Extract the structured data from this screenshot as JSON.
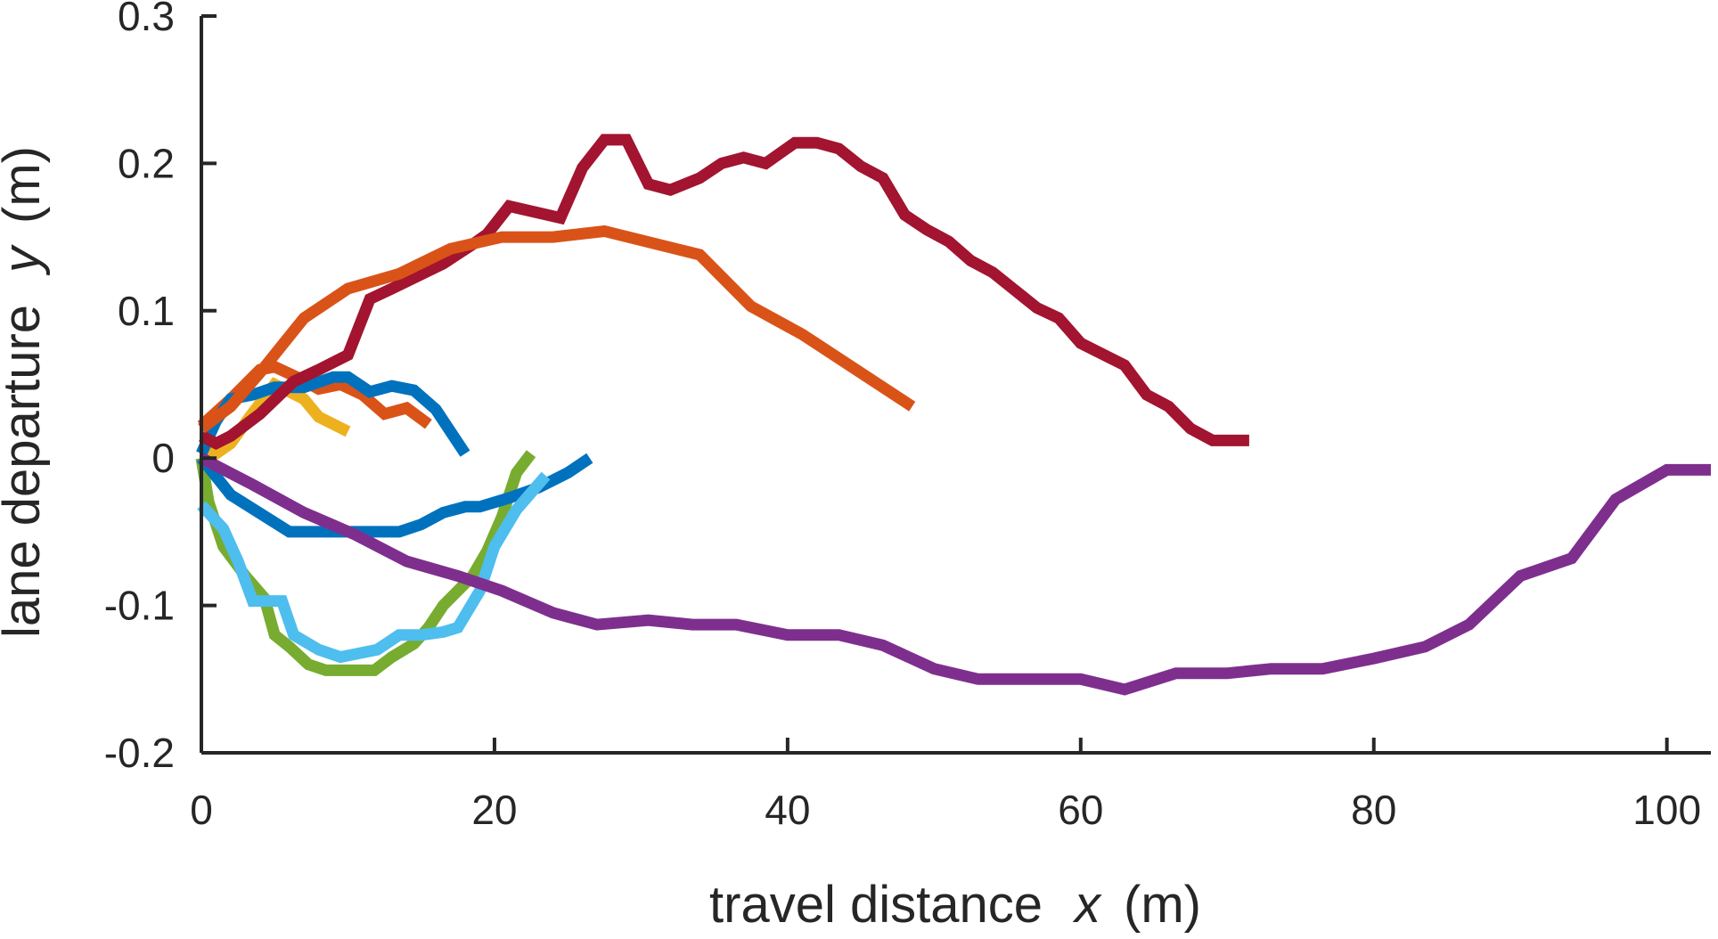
{
  "chart_data": {
    "type": "line",
    "title": "",
    "xlabel": {
      "prefix": "travel distance",
      "variable": "x",
      "unit": "(m)"
    },
    "ylabel": {
      "prefix": "lane departure",
      "variable": "y",
      "unit": "(m)"
    },
    "xlim": [
      0,
      103
    ],
    "ylim": [
      -0.2,
      0.3
    ],
    "xticks": [
      0,
      20,
      40,
      60,
      80,
      100
    ],
    "xtick_labels": [
      "0",
      "20",
      "40",
      "60",
      "80",
      "100"
    ],
    "yticks": [
      -0.2,
      -0.1,
      0,
      0.1,
      0.2,
      0.3
    ],
    "ytick_labels": [
      "-0.2",
      "-0.1",
      "0",
      "0.1",
      "0.2",
      "0.3"
    ],
    "grid": false,
    "legend": "none",
    "series": [
      {
        "color": "#EDB120",
        "points": [
          [
            0,
            0.005
          ],
          [
            1,
            0.003
          ],
          [
            2,
            0.01
          ],
          [
            3.3,
            0.028
          ],
          [
            5,
            0.05
          ],
          [
            7,
            0.04
          ],
          [
            8,
            0.028
          ],
          [
            10,
            0.018
          ]
        ]
      },
      {
        "color": "#D95319",
        "points": [
          [
            0,
            0.022
          ],
          [
            2,
            0.04
          ],
          [
            4,
            0.06
          ],
          [
            5,
            0.062
          ],
          [
            6.5,
            0.055
          ],
          [
            8,
            0.047
          ],
          [
            9.5,
            0.05
          ],
          [
            11,
            0.043
          ],
          [
            12.5,
            0.03
          ],
          [
            14,
            0.034
          ],
          [
            15.5,
            0.023
          ]
        ]
      },
      {
        "color": "#0072BD",
        "points": [
          [
            0,
            0.003
          ],
          [
            1,
            0.025
          ],
          [
            2,
            0.04
          ],
          [
            3.5,
            0.043
          ],
          [
            5,
            0.048
          ],
          [
            7,
            0.048
          ],
          [
            9,
            0.055
          ],
          [
            10,
            0.055
          ],
          [
            11.5,
            0.045
          ],
          [
            13,
            0.049
          ],
          [
            14.5,
            0.046
          ],
          [
            16,
            0.033
          ],
          [
            18,
            0.003
          ]
        ]
      },
      {
        "color": "#A2142F",
        "points": [
          [
            0,
            0.015
          ],
          [
            1,
            0.01
          ],
          [
            2,
            0.015
          ],
          [
            4,
            0.03
          ],
          [
            6.3,
            0.052
          ],
          [
            8,
            0.06
          ],
          [
            10,
            0.07
          ],
          [
            11.5,
            0.108
          ],
          [
            13,
            0.115
          ],
          [
            16.5,
            0.132
          ],
          [
            18.5,
            0.145
          ],
          [
            19.5,
            0.152
          ],
          [
            21,
            0.171
          ],
          [
            24.5,
            0.163
          ],
          [
            26,
            0.197
          ],
          [
            27.5,
            0.216
          ],
          [
            29,
            0.216
          ],
          [
            30.5,
            0.186
          ],
          [
            32,
            0.182
          ],
          [
            34,
            0.19
          ],
          [
            35.5,
            0.2
          ],
          [
            37,
            0.204
          ],
          [
            38.5,
            0.2
          ],
          [
            40.5,
            0.214
          ],
          [
            42,
            0.214
          ],
          [
            43.5,
            0.21
          ],
          [
            45,
            0.198
          ],
          [
            46.5,
            0.19
          ],
          [
            48,
            0.165
          ],
          [
            49.5,
            0.155
          ],
          [
            51,
            0.147
          ],
          [
            52.5,
            0.134
          ],
          [
            54,
            0.126
          ],
          [
            57,
            0.102
          ],
          [
            58.5,
            0.095
          ],
          [
            60,
            0.078
          ],
          [
            63,
            0.063
          ],
          [
            64.5,
            0.043
          ],
          [
            66,
            0.035
          ],
          [
            67.5,
            0.02
          ],
          [
            69,
            0.012
          ],
          [
            71.5,
            0.012
          ]
        ]
      },
      {
        "color": "#D95319",
        "points": [
          [
            0,
            0.02
          ],
          [
            2,
            0.035
          ],
          [
            4,
            0.058
          ],
          [
            7,
            0.095
          ],
          [
            10,
            0.115
          ],
          [
            13.5,
            0.125
          ],
          [
            17,
            0.142
          ],
          [
            20.5,
            0.15
          ],
          [
            24,
            0.15
          ],
          [
            27.5,
            0.154
          ],
          [
            34,
            0.138
          ],
          [
            37.5,
            0.103
          ],
          [
            41,
            0.084
          ],
          [
            48.5,
            0.035
          ]
        ]
      },
      {
        "color": "#77AC30",
        "points": [
          [
            0,
            0.0
          ],
          [
            0.5,
            -0.03
          ],
          [
            1.5,
            -0.06
          ],
          [
            3,
            -0.08
          ],
          [
            4.3,
            -0.095
          ],
          [
            5,
            -0.12
          ],
          [
            6,
            -0.128
          ],
          [
            7.3,
            -0.14
          ],
          [
            8.5,
            -0.144
          ],
          [
            10,
            -0.144
          ],
          [
            11.8,
            -0.144
          ],
          [
            13,
            -0.135
          ],
          [
            14.5,
            -0.126
          ],
          [
            15.5,
            -0.115
          ],
          [
            16.5,
            -0.1
          ],
          [
            17.5,
            -0.09
          ],
          [
            18.5,
            -0.08
          ],
          [
            19.5,
            -0.063
          ],
          [
            20.5,
            -0.04
          ],
          [
            21.5,
            -0.01
          ],
          [
            22.5,
            0.003
          ]
        ]
      },
      {
        "color": "#0072BD",
        "points": [
          [
            0,
            0.0
          ],
          [
            2,
            -0.025
          ],
          [
            6,
            -0.05
          ],
          [
            9,
            -0.05
          ],
          [
            12,
            -0.05
          ],
          [
            13.5,
            -0.05
          ],
          [
            15,
            -0.045
          ],
          [
            16.5,
            -0.037
          ],
          [
            18,
            -0.033
          ],
          [
            19,
            -0.033
          ],
          [
            21,
            -0.027
          ],
          [
            23,
            -0.02
          ],
          [
            25,
            -0.01
          ],
          [
            26.5,
            0.0
          ]
        ]
      },
      {
        "color": "#4DBEEE",
        "points": [
          [
            0,
            -0.032
          ],
          [
            1.5,
            -0.048
          ],
          [
            2.5,
            -0.07
          ],
          [
            3.5,
            -0.097
          ],
          [
            5.5,
            -0.097
          ],
          [
            6.3,
            -0.12
          ],
          [
            8,
            -0.13
          ],
          [
            9.5,
            -0.135
          ],
          [
            12,
            -0.13
          ],
          [
            13.5,
            -0.12
          ],
          [
            15,
            -0.12
          ],
          [
            16.5,
            -0.118
          ],
          [
            17.5,
            -0.115
          ],
          [
            19,
            -0.09
          ],
          [
            20,
            -0.06
          ],
          [
            21.5,
            -0.035
          ],
          [
            23.5,
            -0.012
          ]
        ]
      },
      {
        "color": "#7E2F8E",
        "points": [
          [
            0,
            0.0
          ],
          [
            3.5,
            -0.018
          ],
          [
            7,
            -0.037
          ],
          [
            10.5,
            -0.052
          ],
          [
            14,
            -0.07
          ],
          [
            17.5,
            -0.08
          ],
          [
            20.5,
            -0.09
          ],
          [
            24,
            -0.105
          ],
          [
            27,
            -0.113
          ],
          [
            30.5,
            -0.11
          ],
          [
            33.5,
            -0.113
          ],
          [
            36.5,
            -0.113
          ],
          [
            40,
            -0.12
          ],
          [
            43.5,
            -0.12
          ],
          [
            46.5,
            -0.127
          ],
          [
            50,
            -0.143
          ],
          [
            53,
            -0.15
          ],
          [
            56.5,
            -0.15
          ],
          [
            60,
            -0.15
          ],
          [
            63,
            -0.157
          ],
          [
            66.5,
            -0.146
          ],
          [
            70,
            -0.146
          ],
          [
            73,
            -0.143
          ],
          [
            76.5,
            -0.143
          ],
          [
            80,
            -0.136
          ],
          [
            83.5,
            -0.128
          ],
          [
            86.5,
            -0.113
          ],
          [
            90,
            -0.08
          ],
          [
            93.5,
            -0.068
          ],
          [
            96.5,
            -0.028
          ],
          [
            100,
            -0.008
          ],
          [
            103,
            -0.008
          ]
        ]
      }
    ]
  }
}
